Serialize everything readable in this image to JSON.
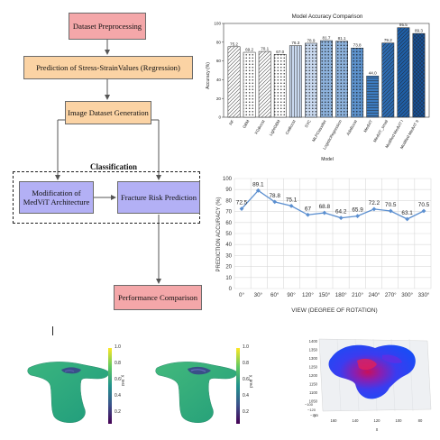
{
  "flowchart": {
    "dataset_preprocessing": "Dataset Preprocessing",
    "prediction_regression": "Prediction of Stress-StrainValues (Regression)",
    "image_dataset_generation": "Image Dataset Generation",
    "classification": "Classification",
    "modification_line1": "Modification of",
    "modification_line2": "MedViT Architecture",
    "fracture_risk": "Fracture Risk Prediction",
    "performance": "Performance Comparison",
    "colors": {
      "pink": "#f4a7a9",
      "peach": "#fbd3a4",
      "lavender": "#b3b0f5"
    }
  },
  "chart_data": [
    {
      "type": "bar",
      "title": "Model Accuracy Comparison",
      "xlabel": "Model",
      "ylabel": "Accuracy (%)",
      "ylim": [
        0,
        100
      ],
      "yticks": [
        0,
        20,
        40,
        60,
        80,
        100
      ],
      "categories": [
        "RF",
        "GBM",
        "XGBoost",
        "LightGBM",
        "CatBoost",
        "SVC",
        "MLPClassifier",
        "LogisticRegression",
        "AdaBoost",
        "MedViT",
        "MedViT_small",
        "Modified MedViT I",
        "Modified MedViT II"
      ],
      "values": [
        75.2,
        69.2,
        70.1,
        67.0,
        76.3,
        78.9,
        81.7,
        81.1,
        73.8,
        44.0,
        79.2,
        95.5,
        89.3
      ],
      "value_labels": [
        "75.2",
        "69.2",
        "70.1",
        "67.0",
        "76.3",
        "78.9",
        "81.7",
        "81.1",
        "73.8",
        "44.0",
        "79.2",
        "95.5",
        "89.3"
      ],
      "bar_colors": [
        "#ffffff",
        "#ffffff",
        "#ffffff",
        "#ffffff",
        "#c9d9ef",
        "#c9d9ef",
        "#8db2dc",
        "#8db2dc",
        "#5d92cc",
        "#3c7bbf",
        "#2d6cb3",
        "#1f5fa8",
        "#174f93"
      ],
      "hatches": [
        "diag",
        "dots",
        "diag",
        "dots",
        "vline",
        "dots",
        "dots",
        "dots",
        "dots",
        "hline",
        "diag",
        "diag",
        "cross"
      ]
    },
    {
      "type": "line",
      "xlabel": "VIEW (DEGREE OF ROTATION)",
      "ylabel": "PREDICTION ACCURACY (%)",
      "ylim": [
        0,
        100
      ],
      "yticks": [
        0,
        10,
        20,
        30,
        40,
        50,
        60,
        70,
        80,
        90,
        100
      ],
      "grid": true,
      "categories": [
        "0°",
        "30°",
        "60°",
        "90°",
        "120°",
        "150°",
        "180°",
        "210°",
        "240°",
        "270°",
        "300°",
        "330°"
      ],
      "values": [
        72.5,
        89.1,
        78.8,
        75.1,
        67,
        68.8,
        64.2,
        65.9,
        72.2,
        70.5,
        63.1,
        70.5
      ],
      "value_labels": [
        "72.5",
        "89.1",
        "78.8",
        "75.1",
        "67",
        "68.8",
        "64.2",
        "65.9",
        "72.2",
        "70.5",
        "63.1",
        "70.5"
      ],
      "color": "#5b8fd0"
    }
  ],
  "renders": {
    "left": {
      "colorbar_label": "y_test",
      "ticks": [
        "1.0",
        "0.8",
        "0.6",
        "0.4",
        "0.2"
      ]
    },
    "right": {
      "colorbar_label": "y_pred",
      "ticks": [
        "1.0",
        "0.8",
        "0.6",
        "0.4",
        "0.2"
      ]
    },
    "scatter3d": {
      "z_ticks": [
        "1400",
        "1350",
        "1300",
        "1250",
        "1200",
        "1150",
        "1100",
        "1050"
      ],
      "x_ticks": [
        "160",
        "140",
        "120",
        "100",
        "80"
      ],
      "y_ticks": [
        "−100",
        "−120",
        "−140"
      ],
      "x_label": "x",
      "y_label": "y"
    }
  }
}
